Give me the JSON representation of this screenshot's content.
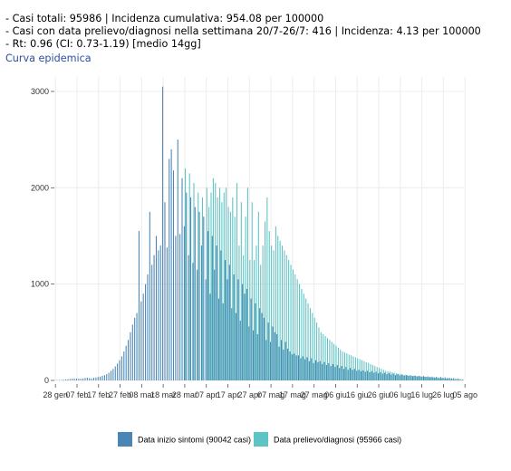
{
  "header": {
    "lines": [
      "- Casi totali: 95986 | Incidenza cumulativa: 954.08 per 100000",
      "- Casi con data prelievo/diagnosi nella settimana 20/7-26/7: 416 | Incidenza: 4.13 per 100000",
      "- Rt: 0.96 (CI: 0.73-1.19) [medio 14gg]"
    ],
    "subtitle": "Curva epidemica"
  },
  "colors": {
    "symptoms": "#4a86b5",
    "diagnosis": "#5ec3c3",
    "grid": "#ececec",
    "axis": "#555555"
  },
  "chart_data": {
    "type": "bar",
    "grid": true,
    "legend_position": "bottom",
    "ylim": [
      0,
      3150
    ],
    "yticks": [
      0,
      1000,
      2000,
      3000
    ],
    "ytick_labels": [
      "0",
      "1000",
      "2000",
      "3000"
    ],
    "xtick_labels": [
      "28 gen",
      "07 feb",
      "17 feb",
      "27 feb",
      "08 mar",
      "18 mar",
      "28 mar",
      "07 apr",
      "17 apr",
      "27 apr",
      "07 mag",
      "17 mag",
      "27 mag",
      "06 giu",
      "16 giu",
      "26 giu",
      "06 lug",
      "16 lug",
      "26 lug",
      "05 ago"
    ],
    "x_start_date": "2020-01-28",
    "days": 190,
    "series": [
      {
        "name": "Data inizio sintomi (90042 casi)",
        "color": "#4a86b5",
        "values": [
          2,
          3,
          4,
          6,
          8,
          10,
          12,
          15,
          17,
          18,
          19,
          18,
          17,
          20,
          25,
          28,
          24,
          20,
          27,
          30,
          35,
          40,
          48,
          55,
          65,
          80,
          100,
          120,
          145,
          175,
          210,
          250,
          300,
          360,
          420,
          500,
          580,
          650,
          700,
          1550,
          820,
          900,
          1000,
          1100,
          1750,
          1200,
          1300,
          1500,
          1350,
          1400,
          3050,
          1850,
          1380,
          2300,
          2400,
          2180,
          1500,
          2500,
          1520,
          2100,
          1600,
          1950,
          1300,
          1900,
          1220,
          1800,
          1150,
          1750,
          1400,
          1700,
          1050,
          1550,
          900,
          1500,
          1150,
          1400,
          850,
          1350,
          800,
          1250,
          1050,
          1200,
          750,
          1100,
          700,
          1050,
          620,
          1000,
          900,
          950,
          560,
          850,
          520,
          800,
          480,
          750,
          700,
          650,
          420,
          600,
          400,
          560,
          500,
          480,
          350,
          420,
          320,
          400,
          330,
          300,
          270,
          280,
          260,
          260,
          230,
          250,
          220,
          240,
          200,
          230,
          180,
          210,
          190,
          200,
          170,
          190,
          160,
          180,
          150,
          170,
          140,
          160,
          130,
          150,
          120,
          140,
          110,
          130,
          110,
          120,
          100,
          110,
          95,
          105,
          90,
          100,
          85,
          95,
          80,
          90,
          75,
          85,
          70,
          80,
          65,
          75,
          60,
          70,
          55,
          65,
          52,
          60,
          50,
          55,
          48,
          52,
          45,
          50,
          42,
          48,
          40,
          45,
          38,
          42,
          35,
          40,
          32,
          38,
          30,
          35,
          28,
          32,
          25,
          28,
          22,
          25,
          18,
          20,
          14,
          10,
          6,
          3,
          1,
          0,
          0,
          0,
          0
        ]
      },
      {
        "name": "Data prelievo/diagnosi (95966 casi)",
        "color": "#5ec3c3",
        "values": [
          0,
          0,
          0,
          0,
          0,
          0,
          0,
          0,
          0,
          0,
          0,
          0,
          0,
          0,
          0,
          0,
          0,
          0,
          0,
          0,
          0,
          0,
          0,
          0,
          0,
          0,
          0,
          0,
          0,
          0,
          0,
          0,
          0,
          0,
          0,
          0,
          0,
          0,
          0,
          0,
          0,
          0,
          0,
          0,
          0,
          0,
          0,
          0,
          0,
          0,
          0,
          0,
          0,
          0,
          0,
          0,
          0,
          0,
          0,
          0,
          2200,
          0,
          2150,
          0,
          2050,
          0,
          1950,
          0,
          1900,
          0,
          2000,
          1800,
          1950,
          2100,
          2050,
          1900,
          2000,
          1850,
          1950,
          2000,
          1800,
          1750,
          1900,
          1700,
          2050,
          1400,
          1850,
          1300,
          1700,
          2000,
          1250,
          1850,
          1250,
          1400,
          1750,
          1200,
          1400,
          1650,
          1900,
          1550,
          1400,
          1350,
          1600,
          1500,
          1450,
          1400,
          1350,
          1300,
          1250,
          1200,
          1150,
          1100,
          1050,
          1000,
          950,
          900,
          850,
          800,
          750,
          700,
          650,
          600,
          550,
          500,
          480,
          460,
          440,
          420,
          400,
          380,
          360,
          340,
          320,
          300,
          290,
          280,
          270,
          260,
          250,
          240,
          230,
          220,
          210,
          200,
          190,
          180,
          170,
          160,
          150,
          140,
          130,
          120,
          110,
          100,
          95,
          90,
          85,
          80,
          75,
          70,
          65,
          60,
          58,
          55,
          52,
          50,
          48,
          46,
          44,
          42,
          40,
          38,
          36,
          34,
          32,
          30,
          28,
          26,
          24,
          22,
          20,
          18,
          16,
          14,
          12,
          10,
          8,
          6,
          5,
          4,
          3,
          2,
          1,
          0,
          0,
          0,
          0,
          0,
          0
        ]
      }
    ]
  }
}
